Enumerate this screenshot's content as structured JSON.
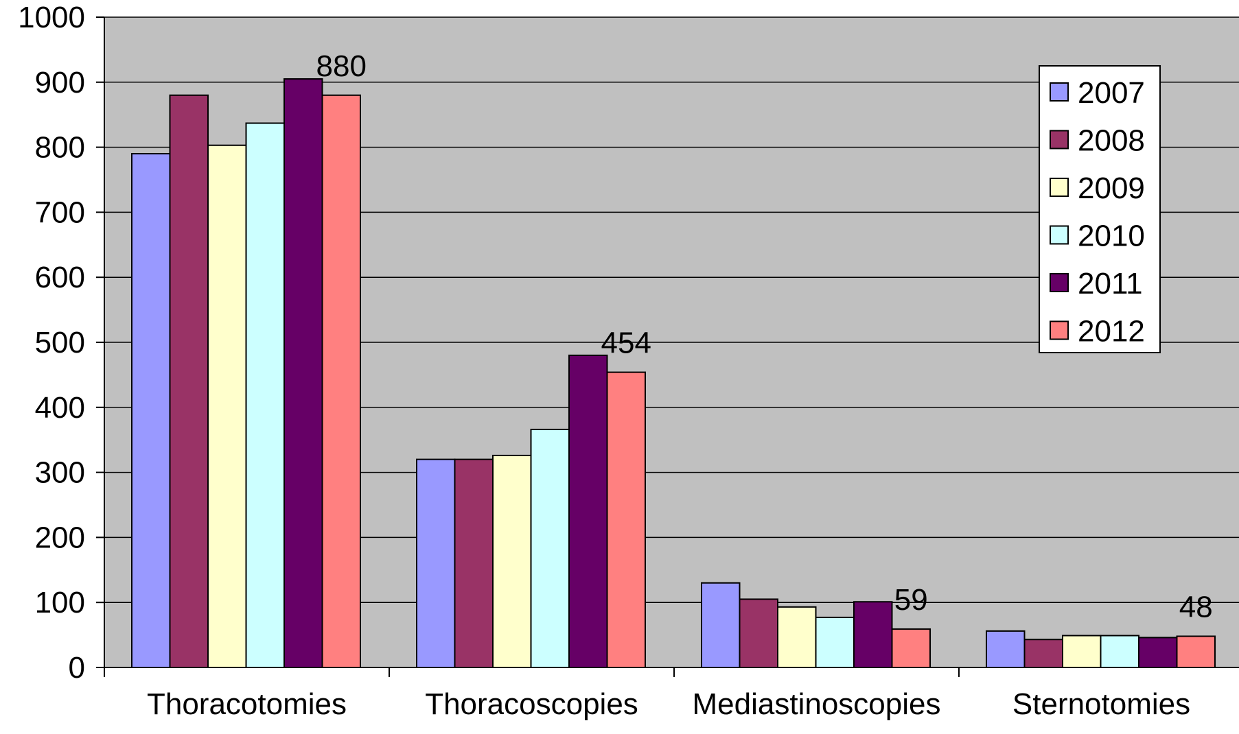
{
  "chart_data": {
    "type": "bar",
    "title": "",
    "xlabel": "",
    "ylabel": "",
    "ylim": [
      0,
      1000
    ],
    "yticks": [
      0,
      100,
      200,
      300,
      400,
      500,
      600,
      700,
      800,
      900,
      1000
    ],
    "grid": true,
    "legend_position": "right",
    "categories": [
      "Thoracotomies",
      "Thoracoscopies",
      "Mediastinoscopies",
      "Sternotomies"
    ],
    "series": [
      {
        "name": "2007",
        "color": "#9999ff",
        "values": [
          790,
          320,
          130,
          56
        ]
      },
      {
        "name": "2008",
        "color": "#993366",
        "values": [
          880,
          320,
          105,
          43
        ]
      },
      {
        "name": "2009",
        "color": "#ffffcc",
        "values": [
          803,
          326,
          93,
          49
        ]
      },
      {
        "name": "2010",
        "color": "#ccffff",
        "values": [
          837,
          366,
          77,
          49
        ]
      },
      {
        "name": "2011",
        "color": "#660066",
        "values": [
          905,
          480,
          101,
          46
        ]
      },
      {
        "name": "2012",
        "color": "#ff8080",
        "values": [
          880,
          454,
          59,
          48
        ]
      }
    ],
    "data_labels": [
      {
        "category": "Thoracotomies",
        "series": "2012",
        "text": "880"
      },
      {
        "category": "Thoracoscopies",
        "series": "2012",
        "text": "454"
      },
      {
        "category": "Mediastinoscopies",
        "series": "2012",
        "text": "59"
      },
      {
        "category": "Sternotomies",
        "series": "2012",
        "text": "48"
      }
    ],
    "plot_background": "#c0c0c0"
  }
}
